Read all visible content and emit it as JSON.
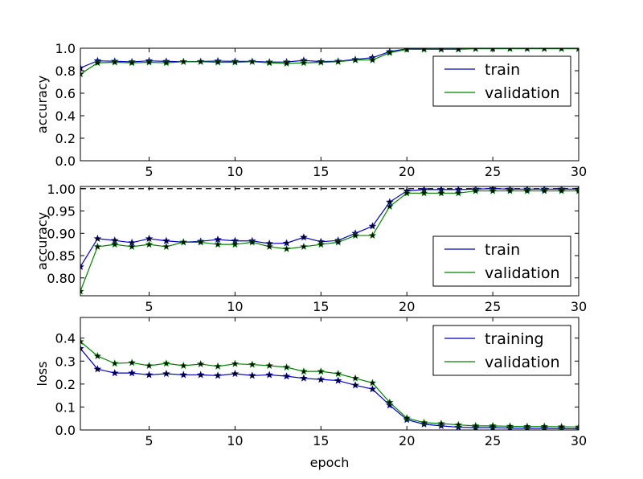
{
  "chart_data": [
    {
      "type": "line",
      "title": "",
      "xlabel": "",
      "ylabel": "accuracy",
      "xlim": [
        1,
        30
      ],
      "ylim": [
        0.0,
        1.0
      ],
      "xticks": [
        5,
        10,
        15,
        20,
        25,
        30
      ],
      "xtick_labels": [
        "5",
        "10",
        "15",
        "20",
        "25",
        "30"
      ],
      "yticks": [
        0.0,
        0.2,
        0.4,
        0.6,
        0.8,
        1.0
      ],
      "ytick_labels": [
        "0.0",
        "0.2",
        "0.4",
        "0.6",
        "0.8",
        "1.0"
      ],
      "grid": false,
      "legend": "upper-right",
      "x": [
        1,
        2,
        3,
        4,
        5,
        6,
        7,
        8,
        9,
        10,
        11,
        12,
        13,
        14,
        15,
        16,
        17,
        18,
        19,
        20,
        21,
        22,
        23,
        24,
        25,
        26,
        27,
        28,
        29,
        30
      ],
      "series": [
        {
          "name": "train",
          "color": "#0000bf",
          "marker": "star",
          "values": [
            0.825,
            0.888,
            0.884,
            0.879,
            0.888,
            0.883,
            0.88,
            0.882,
            0.886,
            0.883,
            0.883,
            0.877,
            0.878,
            0.891,
            0.881,
            0.884,
            0.9,
            0.916,
            0.97,
            0.995,
            0.998,
            0.998,
            0.998,
            0.999,
            1.0,
            0.999,
            0.999,
            0.999,
            0.999,
            0.999
          ]
        },
        {
          "name": "validation",
          "color": "#008000",
          "marker": "star",
          "values": [
            0.77,
            0.87,
            0.875,
            0.87,
            0.875,
            0.87,
            0.88,
            0.88,
            0.875,
            0.875,
            0.88,
            0.87,
            0.865,
            0.87,
            0.875,
            0.88,
            0.895,
            0.895,
            0.96,
            0.99,
            0.99,
            0.99,
            0.99,
            0.995,
            0.995,
            0.995,
            0.995,
            0.995,
            0.995,
            0.995
          ]
        }
      ]
    },
    {
      "type": "line",
      "title": "",
      "xlabel": "",
      "ylabel": "accuracy",
      "xlim": [
        1,
        30
      ],
      "ylim": [
        0.76,
        1.005
      ],
      "xticks": [
        5,
        10,
        15,
        20,
        25,
        30
      ],
      "xtick_labels": [
        "5",
        "10",
        "15",
        "20",
        "25",
        "30"
      ],
      "yticks": [
        0.8,
        0.85,
        0.9,
        0.95,
        1.0
      ],
      "ytick_labels": [
        "0.80",
        "0.85",
        "0.90",
        "0.95",
        "1.00"
      ],
      "grid": false,
      "legend": "lower-right",
      "reference_line": {
        "y": 1.0,
        "style": "dashed",
        "color": "#000000"
      },
      "x": [
        1,
        2,
        3,
        4,
        5,
        6,
        7,
        8,
        9,
        10,
        11,
        12,
        13,
        14,
        15,
        16,
        17,
        18,
        19,
        20,
        21,
        22,
        23,
        24,
        25,
        26,
        27,
        28,
        29,
        30
      ],
      "series": [
        {
          "name": "train",
          "color": "#0000bf",
          "marker": "star",
          "values": [
            0.825,
            0.888,
            0.884,
            0.879,
            0.888,
            0.883,
            0.88,
            0.882,
            0.886,
            0.883,
            0.883,
            0.877,
            0.878,
            0.891,
            0.881,
            0.884,
            0.9,
            0.916,
            0.97,
            0.995,
            0.998,
            0.998,
            0.998,
            0.999,
            1.0,
            0.999,
            0.999,
            0.999,
            0.999,
            0.999
          ]
        },
        {
          "name": "validation",
          "color": "#008000",
          "marker": "star",
          "values": [
            0.77,
            0.87,
            0.875,
            0.87,
            0.875,
            0.87,
            0.88,
            0.88,
            0.875,
            0.875,
            0.88,
            0.87,
            0.865,
            0.87,
            0.875,
            0.88,
            0.895,
            0.895,
            0.96,
            0.99,
            0.99,
            0.99,
            0.99,
            0.995,
            0.995,
            0.995,
            0.995,
            0.995,
            0.995,
            0.995
          ]
        }
      ]
    },
    {
      "type": "line",
      "title": "",
      "xlabel": "epoch",
      "ylabel": "loss",
      "xlim": [
        1,
        30
      ],
      "ylim": [
        0.0,
        0.49
      ],
      "xticks": [
        5,
        10,
        15,
        20,
        25,
        30
      ],
      "xtick_labels": [
        "5",
        "10",
        "15",
        "20",
        "25",
        "30"
      ],
      "yticks": [
        0.0,
        0.1,
        0.2,
        0.3,
        0.4
      ],
      "ytick_labels": [
        "0.0",
        "0.1",
        "0.2",
        "0.3",
        "0.4"
      ],
      "grid": false,
      "legend": "upper-right",
      "x": [
        1,
        2,
        3,
        4,
        5,
        6,
        7,
        8,
        9,
        10,
        11,
        12,
        13,
        14,
        15,
        16,
        17,
        18,
        19,
        20,
        21,
        22,
        23,
        24,
        25,
        26,
        27,
        28,
        29,
        30
      ],
      "series": [
        {
          "name": "training",
          "color": "#0000bf",
          "marker": "star",
          "values": [
            0.355,
            0.265,
            0.248,
            0.248,
            0.24,
            0.245,
            0.24,
            0.24,
            0.237,
            0.245,
            0.237,
            0.24,
            0.234,
            0.225,
            0.22,
            0.215,
            0.195,
            0.178,
            0.108,
            0.045,
            0.025,
            0.018,
            0.012,
            0.01,
            0.01,
            0.008,
            0.007,
            0.007,
            0.006,
            0.005
          ]
        },
        {
          "name": "validation",
          "color": "#008000",
          "marker": "star",
          "values": [
            0.385,
            0.322,
            0.29,
            0.293,
            0.28,
            0.29,
            0.28,
            0.287,
            0.277,
            0.288,
            0.285,
            0.28,
            0.273,
            0.255,
            0.255,
            0.245,
            0.225,
            0.205,
            0.12,
            0.052,
            0.032,
            0.028,
            0.022,
            0.018,
            0.018,
            0.016,
            0.015,
            0.015,
            0.014,
            0.013
          ]
        }
      ]
    }
  ]
}
